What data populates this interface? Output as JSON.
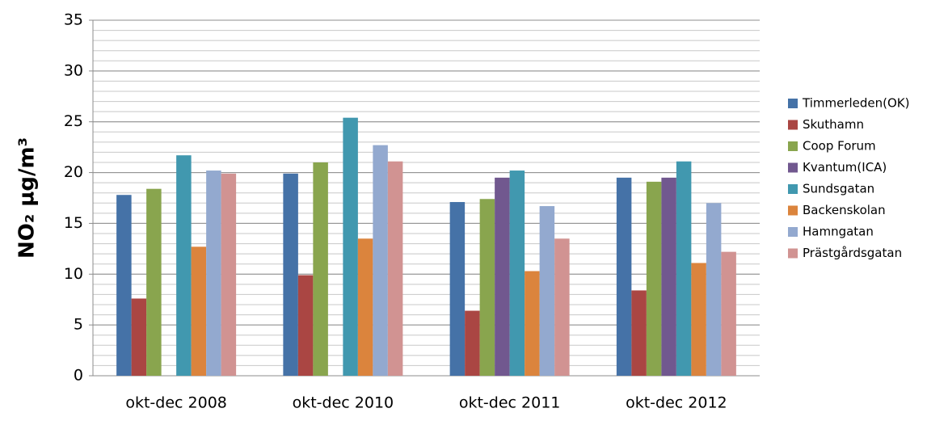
{
  "chart_data": {
    "type": "bar",
    "ylabel": "NO₂ µg/m³",
    "categories": [
      "okt-dec 2008",
      "okt-dec 2010",
      "okt-dec 2011",
      "okt-dec 2012"
    ],
    "series": [
      {
        "name": "Timmerleden(OK)",
        "color": "#4572a7",
        "values": [
          17.8,
          19.9,
          17.1,
          19.5
        ]
      },
      {
        "name": "Skuthamn",
        "color": "#aa4643",
        "values": [
          7.6,
          9.9,
          6.4,
          8.4
        ]
      },
      {
        "name": "Coop Forum",
        "color": "#89a54e",
        "values": [
          18.4,
          21.0,
          17.4,
          19.1
        ]
      },
      {
        "name": "Kvantum(ICA)",
        "color": "#71588f",
        "values": [
          null,
          null,
          19.5,
          19.5
        ]
      },
      {
        "name": "Sundsgatan",
        "color": "#4198af",
        "values": [
          21.7,
          25.4,
          20.2,
          21.1
        ]
      },
      {
        "name": "Backenskolan",
        "color": "#db843d",
        "values": [
          12.7,
          13.5,
          10.3,
          11.1
        ]
      },
      {
        "name": "Hamngatan",
        "color": "#93a9cf",
        "values": [
          20.2,
          22.7,
          16.7,
          17.0
        ]
      },
      {
        "name": "Prästgårdsgatan",
        "color": "#d19392",
        "values": [
          19.9,
          21.1,
          13.5,
          12.2
        ]
      }
    ],
    "ylim": [
      0,
      35
    ],
    "yticks": [
      0,
      5,
      10,
      15,
      20,
      25,
      30,
      35
    ],
    "grid": true,
    "minor_grid_step": 1,
    "legend": "right"
  }
}
